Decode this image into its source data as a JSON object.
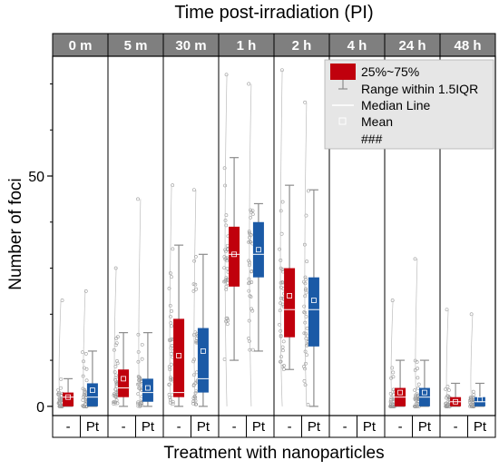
{
  "chart_data": {
    "type": "box",
    "title": "Time post-irradiation (PI)",
    "xlabel": "Treatment with nanoparticles",
    "ylabel": "Number of foci",
    "ylim": [
      -2,
      76
    ],
    "yticks": [
      0,
      50
    ],
    "time_points": [
      "0 m",
      "5 m",
      "30 m",
      "1 h",
      "2 h",
      "4 h",
      "24 h",
      "48 h"
    ],
    "treatments": [
      "-",
      "Pt"
    ],
    "grid": false,
    "legend_position": "top-right",
    "legend": {
      "box": "25%~75%",
      "whisker": "Range within 1.5IQR",
      "median": "Median Line",
      "mean": "Mean",
      "outlier": "###"
    },
    "colors": {
      "control": "#c0000d",
      "pt": "#1b5aa6",
      "header_bg": "#7f7f7f",
      "whisker": "#8c8c8c",
      "points": "#9a9a9a"
    },
    "series": [
      {
        "treatment": "-",
        "boxes": [
          {
            "time": "0 m",
            "q1": 0,
            "median": 2,
            "q3": 3,
            "mean": 2,
            "whisker_low": 0,
            "whisker_high": 6,
            "max": 23
          },
          {
            "time": "5 m",
            "q1": 2,
            "median": 4,
            "q3": 8,
            "mean": 6,
            "whisker_low": 0,
            "whisker_high": 16,
            "max": 30
          },
          {
            "time": "30 m",
            "q1": 2,
            "median": 3,
            "q3": 19,
            "mean": 11,
            "whisker_low": 0,
            "whisker_high": 35,
            "max": 48
          },
          {
            "time": "1 h",
            "q1": 26,
            "median": 33,
            "q3": 39,
            "mean": 33,
            "whisker_low": 10,
            "whisker_high": 54,
            "max": 72
          },
          {
            "time": "2 h",
            "q1": 15,
            "median": 21,
            "q3": 30,
            "mean": 24,
            "whisker_low": 8,
            "whisker_high": 48,
            "max": 73
          },
          {
            "time": "24 h",
            "q1": 0,
            "median": 2,
            "q3": 4,
            "mean": 3,
            "whisker_low": 0,
            "whisker_high": 10,
            "max": 23
          },
          {
            "time": "48 h",
            "q1": 0,
            "median": 1,
            "q3": 2,
            "mean": 1,
            "whisker_low": 0,
            "whisker_high": 5,
            "max": 21
          }
        ]
      },
      {
        "treatment": "Pt",
        "boxes": [
          {
            "time": "0 m",
            "q1": 0,
            "median": 2,
            "q3": 5,
            "mean": 3.5,
            "whisker_low": 0,
            "whisker_high": 12,
            "max": 25
          },
          {
            "time": "5 m",
            "q1": 1,
            "median": 3,
            "q3": 6,
            "mean": 4,
            "whisker_low": 0,
            "whisker_high": 16,
            "max": 45
          },
          {
            "time": "30 m",
            "q1": 3,
            "median": 6,
            "q3": 17,
            "mean": 12,
            "whisker_low": 0,
            "whisker_high": 33,
            "max": 47
          },
          {
            "time": "1 h",
            "q1": 28,
            "median": 33,
            "q3": 40,
            "mean": 34,
            "whisker_low": 12,
            "whisker_high": 44,
            "max": 70
          },
          {
            "time": "2 h",
            "q1": 13,
            "median": 21,
            "q3": 28,
            "mean": 23,
            "whisker_low": 0,
            "whisker_high": 47,
            "max": 66
          },
          {
            "time": "24 h",
            "q1": 0,
            "median": 2,
            "q3": 4,
            "mean": 3,
            "whisker_low": 0,
            "whisker_high": 10,
            "max": 32
          },
          {
            "time": "48 h",
            "q1": 0,
            "median": 1,
            "q3": 2,
            "mean": 1.5,
            "whisker_low": 0,
            "whisker_high": 5,
            "max": 20
          }
        ]
      }
    ]
  }
}
